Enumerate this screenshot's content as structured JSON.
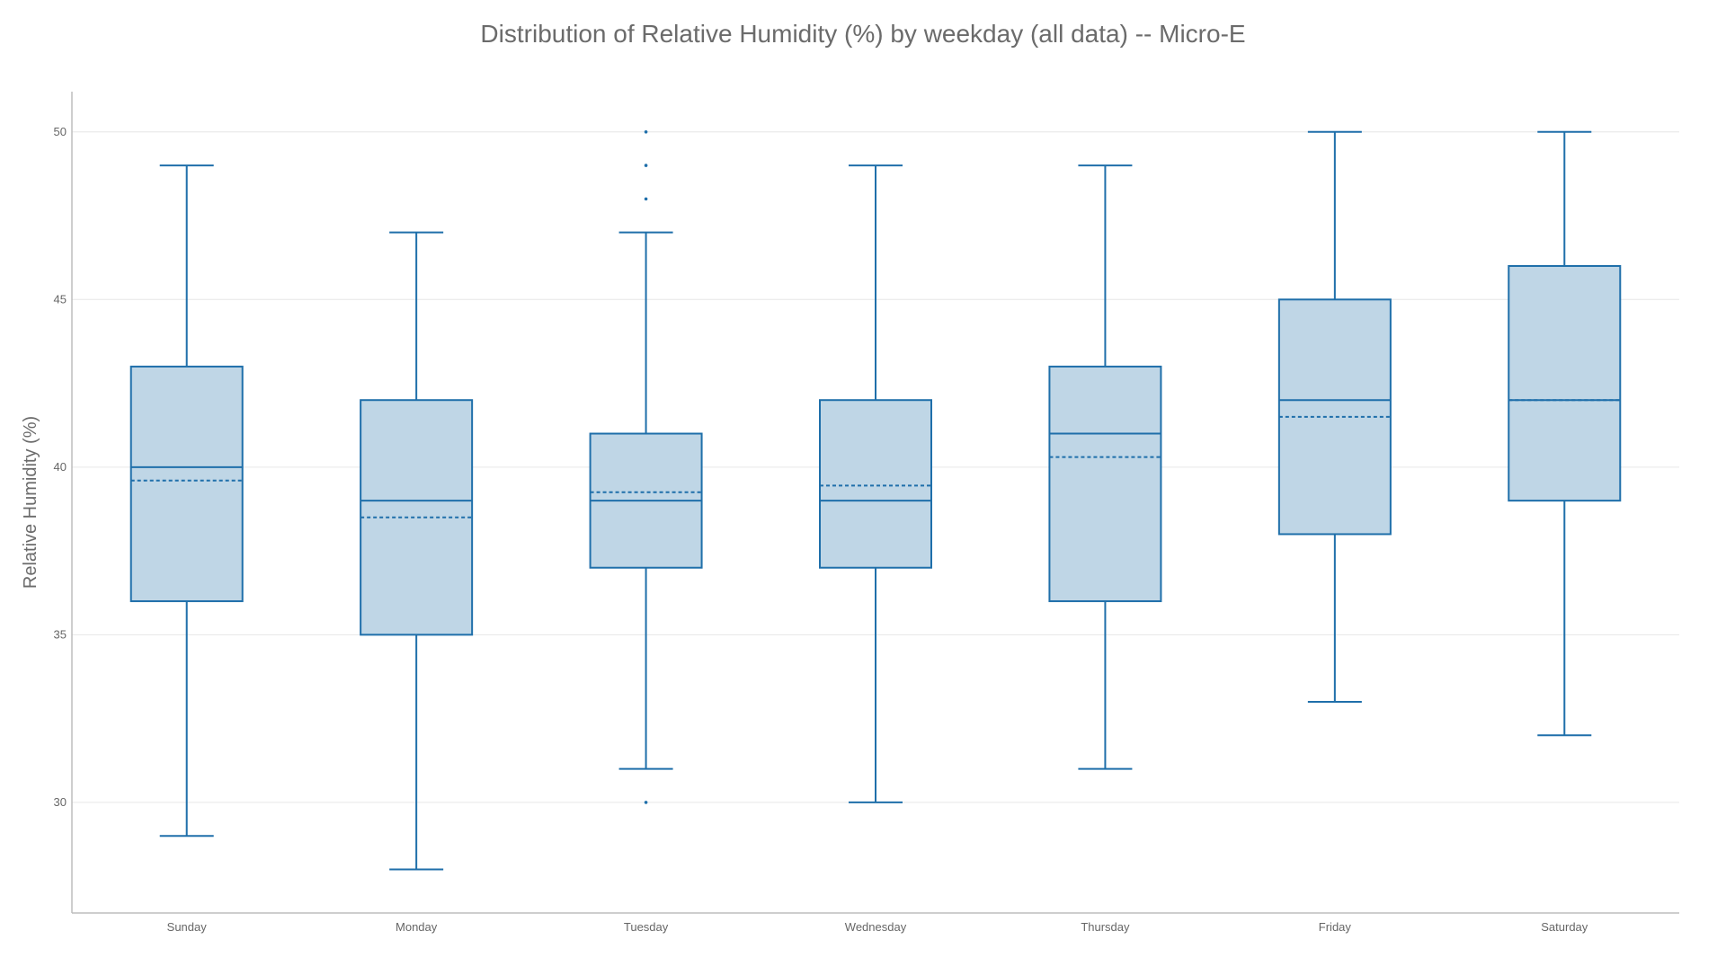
{
  "chart_data": {
    "type": "box",
    "title": "Distribution of Relative Humidity (%) by weekday (all data) -- Micro-E",
    "xlabel": "",
    "ylabel": "Relative Humidity (%)",
    "ylim": [
      26.7,
      51.2
    ],
    "yticks": [
      30,
      35,
      40,
      45,
      50
    ],
    "grid": true,
    "legend": "none",
    "colors": {
      "line": "#1f6faa",
      "fill": "#bfd6e6",
      "grid": "#e6e6e6",
      "axis": "#bdbdbd",
      "tick_text": "#666666",
      "title_text": "#6b6b6b"
    },
    "categories": [
      "Sunday",
      "Monday",
      "Tuesday",
      "Wednesday",
      "Thursday",
      "Friday",
      "Saturday"
    ],
    "boxes": [
      {
        "name": "Sunday",
        "whisker_low": 29,
        "q1": 36,
        "median": 40,
        "q3": 43,
        "whisker_high": 49,
        "mean": 39.6,
        "outliers": []
      },
      {
        "name": "Monday",
        "whisker_low": 28,
        "q1": 35,
        "median": 39,
        "q3": 42,
        "whisker_high": 47,
        "mean": 38.5,
        "outliers": []
      },
      {
        "name": "Tuesday",
        "whisker_low": 31,
        "q1": 37,
        "median": 39,
        "q3": 41,
        "whisker_high": 47,
        "mean": 39.25,
        "outliers": [
          30,
          48,
          49,
          50
        ]
      },
      {
        "name": "Wednesday",
        "whisker_low": 30,
        "q1": 37,
        "median": 39,
        "q3": 42,
        "whisker_high": 49,
        "mean": 39.45,
        "outliers": []
      },
      {
        "name": "Thursday",
        "whisker_low": 31,
        "q1": 36,
        "median": 41,
        "q3": 43,
        "whisker_high": 49,
        "mean": 40.3,
        "outliers": []
      },
      {
        "name": "Friday",
        "whisker_low": 33,
        "q1": 38,
        "median": 42,
        "q3": 45,
        "whisker_high": 50,
        "mean": 41.5,
        "outliers": []
      },
      {
        "name": "Saturday",
        "whisker_low": 32,
        "q1": 39,
        "median": 42,
        "q3": 46,
        "whisker_high": 50,
        "mean": 42.0,
        "outliers": []
      }
    ]
  }
}
